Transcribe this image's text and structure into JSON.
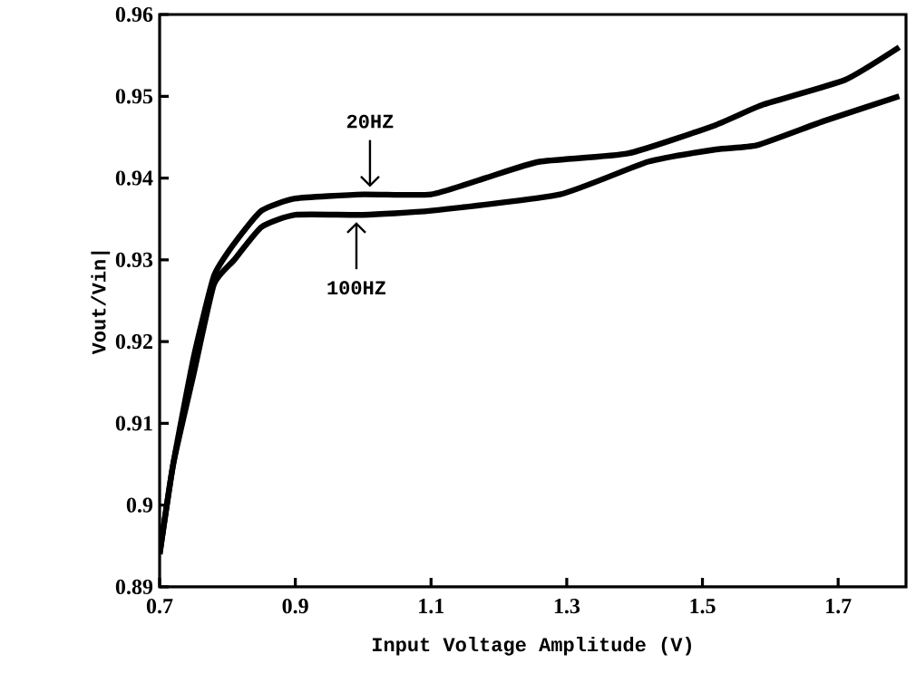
{
  "chart_data": {
    "type": "line",
    "xlabel": "Input Voltage Amplitude (V)",
    "ylabel": "Vout/Vin|",
    "xlim": [
      0.7,
      1.8
    ],
    "ylim": [
      0.89,
      0.96
    ],
    "xticks": [
      0.7,
      0.9,
      1.1,
      1.3,
      1.5,
      1.7
    ],
    "yticks": [
      0.89,
      0.9,
      0.91,
      0.92,
      0.93,
      0.94,
      0.95,
      0.96
    ],
    "grid": false,
    "marker": "none",
    "line_style": "solid",
    "series": [
      {
        "color": "#000000",
        "x": [
          0.7,
          0.72,
          0.75,
          0.78,
          0.81,
          0.85,
          0.9,
          1.0,
          1.1,
          1.18,
          1.26,
          1.39,
          1.52,
          1.59,
          1.71,
          1.79
        ],
        "values": [
          0.894,
          0.905,
          0.918,
          0.928,
          0.932,
          0.936,
          0.9375,
          0.938,
          0.938,
          0.94,
          0.942,
          0.943,
          0.9465,
          0.949,
          0.952,
          0.956
        ]
      },
      {
        "color": "#000000",
        "x": [
          0.7,
          0.72,
          0.75,
          0.78,
          0.81,
          0.85,
          0.9,
          1.0,
          1.1,
          1.29,
          1.42,
          1.52,
          1.58,
          1.68,
          1.79
        ],
        "values": [
          0.894,
          0.905,
          0.916,
          0.927,
          0.93,
          0.934,
          0.9355,
          0.9355,
          0.936,
          0.938,
          0.942,
          0.9435,
          0.944,
          0.947,
          0.95
        ]
      }
    ],
    "annotations": [
      {
        "text": "20HZ",
        "x": 1.01,
        "y": 0.938
      },
      {
        "text": "100HZ",
        "x": 0.99,
        "y": 0.9355
      }
    ]
  }
}
